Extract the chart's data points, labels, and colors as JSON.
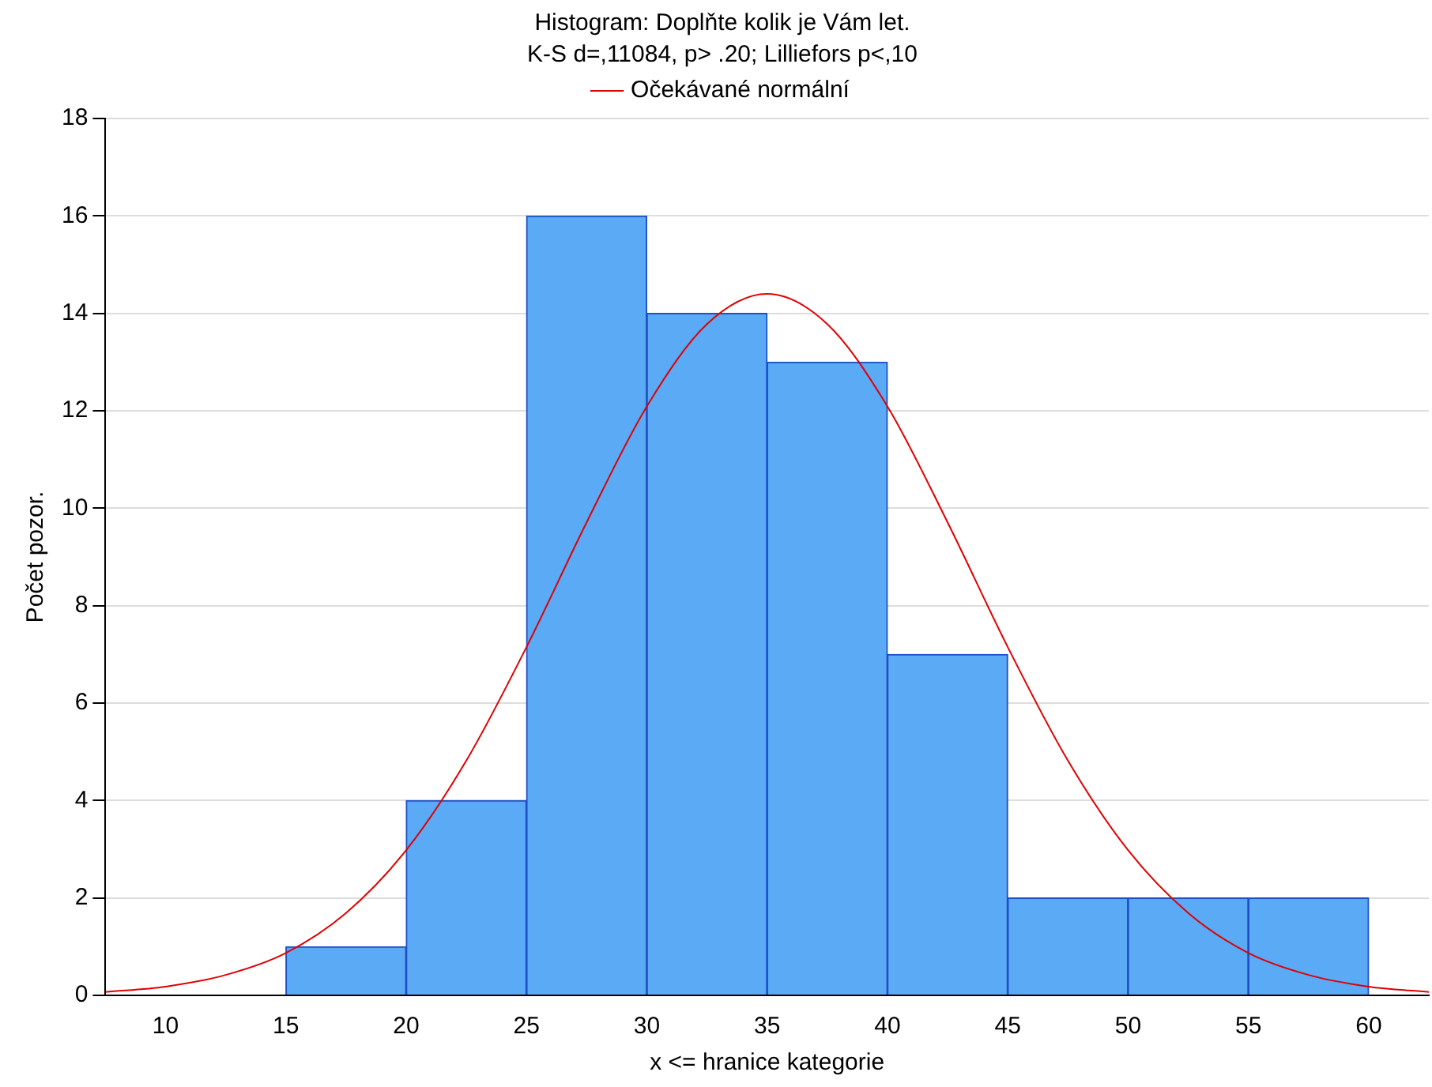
{
  "chart_data": {
    "type": "histogram",
    "title": "Histogram: Doplňte kolik je Vám let.",
    "subtitle": "K-S d=,11084, p> .20; Lilliefors p<,10",
    "xlabel": "x <= hranice kategorie",
    "ylabel": "Počet pozor.",
    "bins": [
      15,
      20,
      25,
      30,
      35,
      40,
      45,
      50,
      55,
      60
    ],
    "values": [
      1,
      4,
      16,
      14,
      13,
      7,
      2,
      2,
      2
    ],
    "color": "#5aaaf5",
    "series": [
      {
        "type": "line",
        "name": "Očekávané normální",
        "color": "#e00000",
        "x": [
          7.5,
          10,
          12.5,
          15,
          17.5,
          20,
          22.5,
          25,
          27.5,
          30,
          32.5,
          35,
          37.5,
          40,
          42.5,
          45,
          47.5,
          50,
          52.5,
          55,
          57.5,
          60,
          62.5
        ],
        "values": [
          0.07,
          0.18,
          0.42,
          0.87,
          1.69,
          2.98,
          4.82,
          7.15,
          9.71,
          12.09,
          13.78,
          14.4,
          13.78,
          12.09,
          9.71,
          7.15,
          4.82,
          2.98,
          1.69,
          0.87,
          0.42,
          0.18,
          0.07
        ]
      }
    ],
    "xlim": [
      7.5,
      62.5
    ],
    "xticks": [
      10,
      15,
      20,
      25,
      30,
      35,
      40,
      45,
      50,
      55,
      60
    ],
    "ylim": [
      0,
      18
    ],
    "yticks": [
      0,
      2,
      4,
      6,
      8,
      10,
      12,
      14,
      16,
      18
    ],
    "grid": "y",
    "legend": "top",
    "marker": "none"
  }
}
